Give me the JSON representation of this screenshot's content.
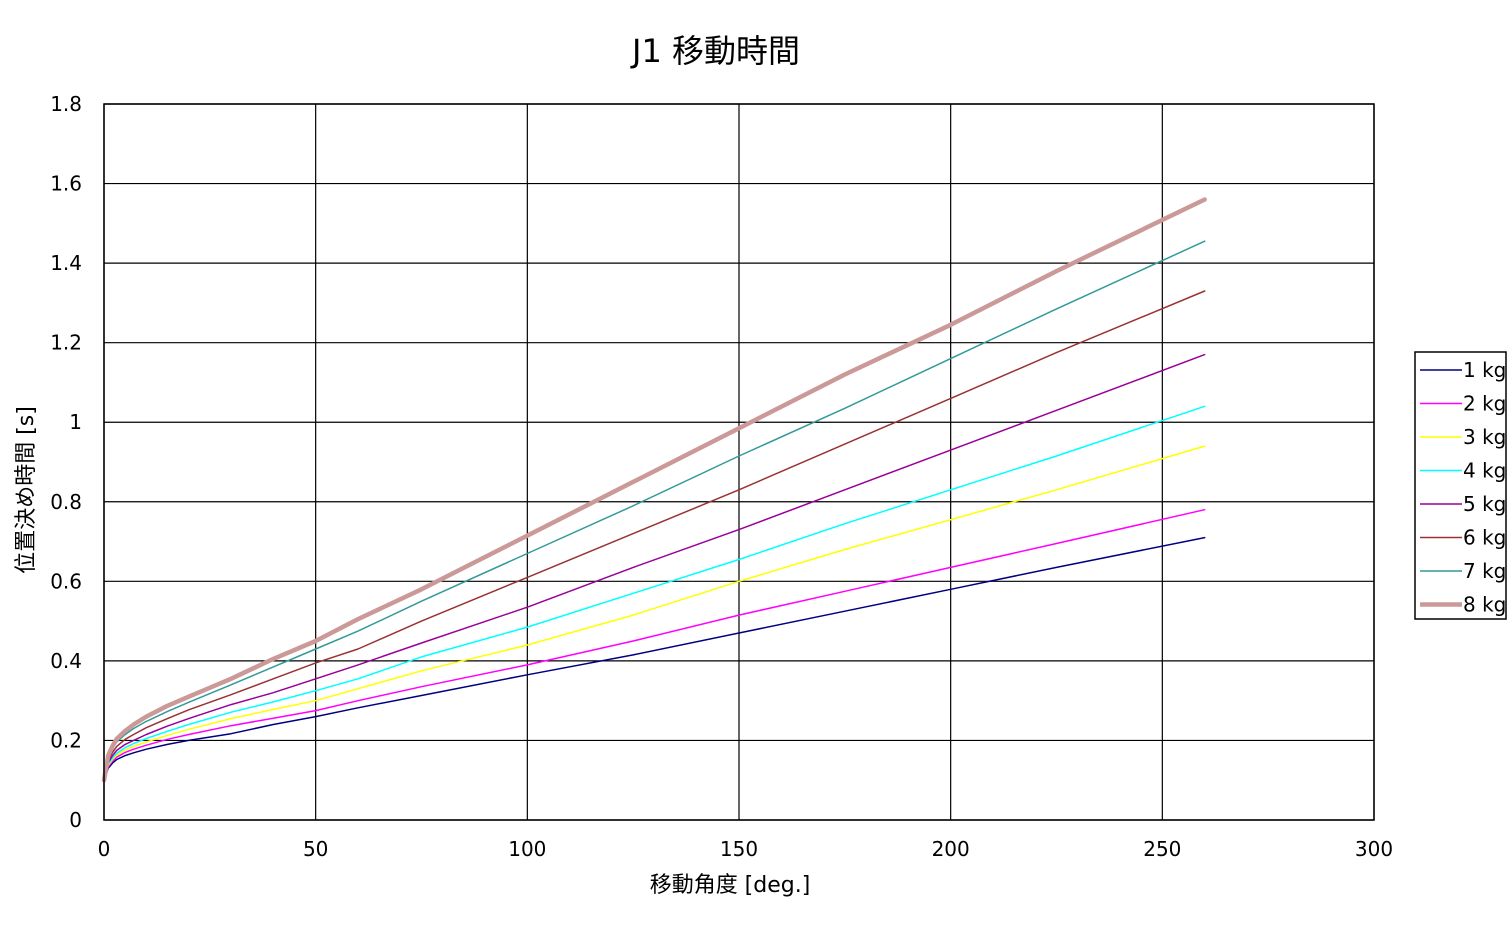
{
  "chart_data": {
    "type": "line",
    "title": "J1 移動時間",
    "xlabel": "移動角度 [deg.]",
    "ylabel": "位置決め時間 [s]",
    "xlim": [
      0,
      300
    ],
    "ylim": [
      0,
      1.8
    ],
    "xticks": [
      "0",
      "50",
      "100",
      "150",
      "200",
      "250",
      "300"
    ],
    "yticks": [
      "0",
      "0.2",
      "0.4",
      "0.6",
      "0.8",
      "1",
      "1.2",
      "1.4",
      "1.6",
      "1.8"
    ],
    "grid": true,
    "legend_position": "right",
    "x": [
      0,
      1,
      2,
      3,
      5,
      7,
      10,
      15,
      20,
      30,
      40,
      50,
      60,
      75,
      100,
      125,
      150,
      175,
      200,
      225,
      260
    ],
    "series": [
      {
        "name": "1 kg",
        "color": "#000080",
        "width": 1.5,
        "values": [
          0.1,
          0.13,
          0.143,
          0.152,
          0.162,
          0.169,
          0.178,
          0.19,
          0.2,
          0.217,
          0.24,
          0.26,
          0.282,
          0.313,
          0.365,
          0.415,
          0.47,
          0.525,
          0.58,
          0.635,
          0.71
        ]
      },
      {
        "name": "2 kg",
        "color": "#ff00ff",
        "width": 1.5,
        "values": [
          0.1,
          0.134,
          0.148,
          0.158,
          0.17,
          0.178,
          0.188,
          0.203,
          0.215,
          0.237,
          0.256,
          0.275,
          0.3,
          0.335,
          0.39,
          0.45,
          0.515,
          0.575,
          0.635,
          0.695,
          0.78
        ]
      },
      {
        "name": "3 kg",
        "color": "#ffff00",
        "width": 1.5,
        "values": [
          0.1,
          0.137,
          0.152,
          0.163,
          0.176,
          0.185,
          0.196,
          0.213,
          0.228,
          0.255,
          0.278,
          0.3,
          0.33,
          0.375,
          0.44,
          0.515,
          0.6,
          0.68,
          0.755,
          0.83,
          0.94
        ]
      },
      {
        "name": "4 kg",
        "color": "#00ffff",
        "width": 1.5,
        "values": [
          0.1,
          0.14,
          0.156,
          0.168,
          0.182,
          0.192,
          0.205,
          0.223,
          0.24,
          0.271,
          0.297,
          0.325,
          0.355,
          0.41,
          0.485,
          0.57,
          0.655,
          0.745,
          0.83,
          0.915,
          1.04
        ]
      },
      {
        "name": "5 kg",
        "color": "#990099",
        "width": 1.5,
        "values": [
          0.1,
          0.144,
          0.162,
          0.175,
          0.19,
          0.2,
          0.215,
          0.236,
          0.255,
          0.29,
          0.32,
          0.355,
          0.39,
          0.445,
          0.535,
          0.635,
          0.73,
          0.83,
          0.93,
          1.03,
          1.17
        ]
      },
      {
        "name": "6 kg",
        "color": "#993333",
        "width": 1.5,
        "values": [
          0.1,
          0.15,
          0.17,
          0.185,
          0.203,
          0.215,
          0.232,
          0.255,
          0.277,
          0.315,
          0.355,
          0.395,
          0.43,
          0.5,
          0.61,
          0.72,
          0.83,
          0.945,
          1.06,
          1.175,
          1.33
        ]
      },
      {
        "name": "7 kg",
        "color": "#339999",
        "width": 1.5,
        "values": [
          0.1,
          0.158,
          0.18,
          0.196,
          0.215,
          0.23,
          0.248,
          0.273,
          0.296,
          0.34,
          0.385,
          0.43,
          0.475,
          0.55,
          0.67,
          0.79,
          0.915,
          1.035,
          1.16,
          1.285,
          1.455
        ]
      },
      {
        "name": "8 kg",
        "color": "#cc9999",
        "width": 4.5,
        "values": [
          0.1,
          0.162,
          0.186,
          0.204,
          0.224,
          0.24,
          0.26,
          0.287,
          0.31,
          0.355,
          0.405,
          0.45,
          0.505,
          0.58,
          0.715,
          0.85,
          0.985,
          1.12,
          1.245,
          1.38,
          1.56
        ]
      }
    ]
  }
}
